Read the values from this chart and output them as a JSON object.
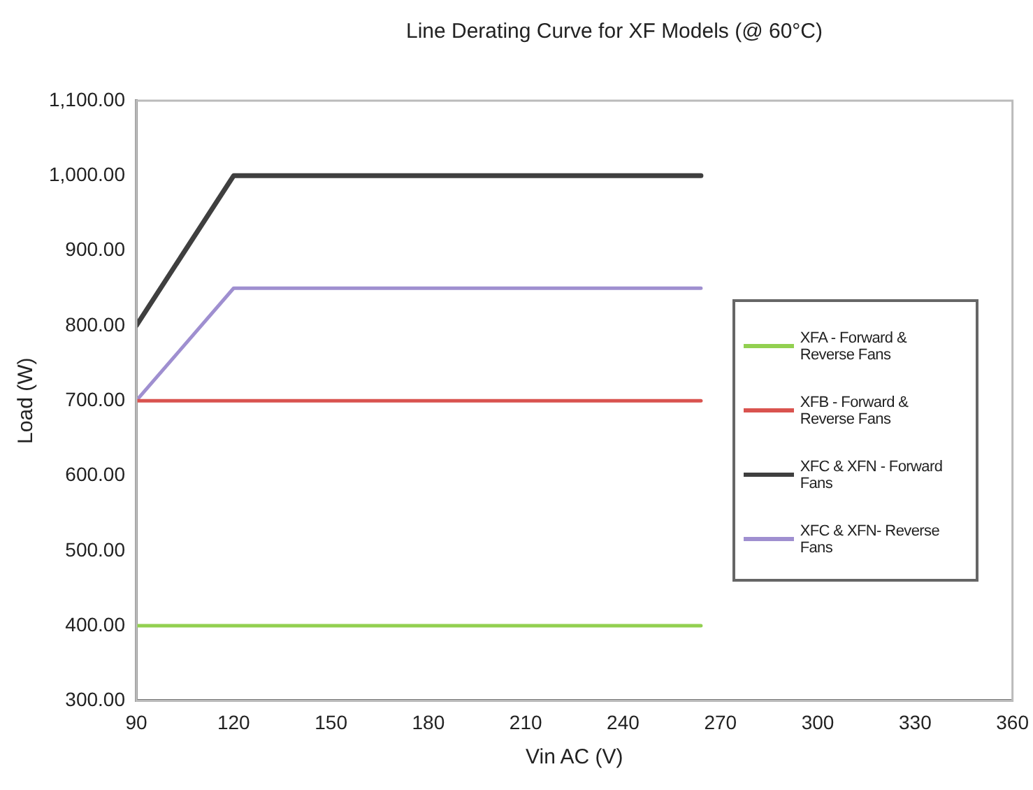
{
  "chart_data": {
    "type": "line",
    "title": "Line Derating Curve for XF Models (@ 60°C)",
    "xlabel": "Vin AC (V)",
    "ylabel": "Load (W)",
    "series": [
      {
        "name": "XFA - Forward & Reverse Fans",
        "color": "#92d050",
        "x": [
          90,
          264
        ],
        "values": [
          400,
          400
        ]
      },
      {
        "name": "XFB - Forward & Reverse Fans",
        "color": "#d9534f",
        "x": [
          90,
          264
        ],
        "values": [
          700,
          700
        ]
      },
      {
        "name": "XFC & XFN - Forward Fans",
        "color": "#3f3f3f",
        "x": [
          90,
          120,
          264
        ],
        "values": [
          800,
          1000,
          1000
        ]
      },
      {
        "name": "XFC & XFN- Reverse Fans",
        "color": "#9f8fd0",
        "x": [
          90,
          120,
          264
        ],
        "values": [
          700,
          850,
          850
        ]
      }
    ],
    "xlim": [
      90,
      360
    ],
    "xticks": [
      90,
      120,
      150,
      180,
      210,
      240,
      270,
      300,
      330,
      360
    ],
    "ylim": [
      300,
      1100
    ],
    "yticks": [
      {
        "value": 300,
        "label": "300.00"
      },
      {
        "value": 400,
        "label": "400.00"
      },
      {
        "value": 500,
        "label": "500.00"
      },
      {
        "value": 600,
        "label": "600.00"
      },
      {
        "value": 700,
        "label": "700.00"
      },
      {
        "value": 800,
        "label": "800.00"
      },
      {
        "value": 900,
        "label": "900.00"
      },
      {
        "value": 1000,
        "label": "1,000.00"
      },
      {
        "value": 1100,
        "label": "1,100.00"
      }
    ],
    "grid": false,
    "legend": "right",
    "marker": "none",
    "line_style": "solid"
  }
}
